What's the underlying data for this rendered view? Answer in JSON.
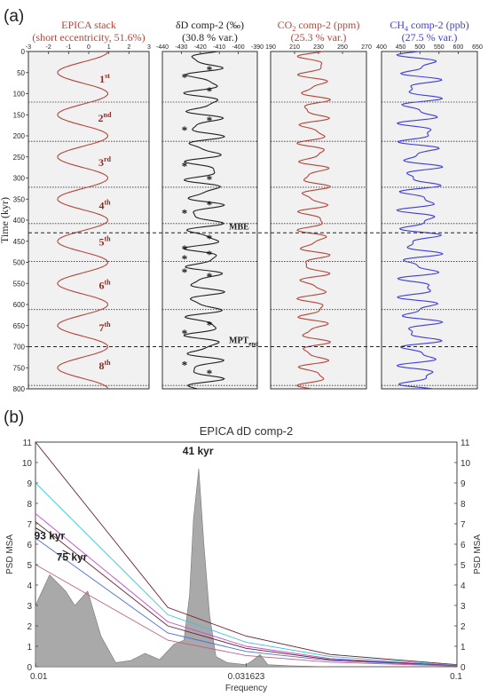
{
  "panel_labels": {
    "a": "(a)",
    "b": "(b)"
  },
  "colors": {
    "red": "#b5453a",
    "black": "#222222",
    "blue": "#3d3de0",
    "gray_fill": "#a9a9a9",
    "panel_bg": "#f1f1f1"
  },
  "chart_data": [
    {
      "type": "line",
      "ylabel": "Time (kyr)",
      "ylim": [
        0,
        800
      ],
      "yticks": [
        0,
        50,
        100,
        150,
        200,
        250,
        300,
        350,
        400,
        450,
        500,
        550,
        600,
        650,
        700,
        750,
        800
      ],
      "boundaries": [
        120,
        213,
        322,
        408,
        498,
        612,
        792
      ],
      "dashed_lines": [
        {
          "y": 430,
          "label": "MBE"
        },
        {
          "y": 700,
          "label": "MPT",
          "label_sub": "end"
        }
      ],
      "cycle_labels": [
        {
          "n": "1",
          "sup": "st",
          "y": 65
        },
        {
          "n": "2",
          "sup": "nd",
          "y": 158
        },
        {
          "n": "3",
          "sup": "rd",
          "y": 263
        },
        {
          "n": "4",
          "sup": "th",
          "y": 365
        },
        {
          "n": "5",
          "sup": "th",
          "y": 452
        },
        {
          "n": "6",
          "sup": "th",
          "y": 555
        },
        {
          "n": "7",
          "sup": "th",
          "y": 655
        },
        {
          "n": "8",
          "sup": "th",
          "y": 745
        }
      ],
      "star_markers": [
        {
          "side": "L",
          "y": 58
        },
        {
          "side": "R",
          "y": 40
        },
        {
          "side": "R",
          "y": 90
        },
        {
          "side": "L",
          "y": 183
        },
        {
          "side": "R",
          "y": 160
        },
        {
          "side": "L",
          "y": 268
        },
        {
          "side": "R",
          "y": 300
        },
        {
          "side": "L",
          "y": 380
        },
        {
          "side": "R",
          "y": 360
        },
        {
          "side": "L",
          "y": 465
        },
        {
          "side": "R",
          "y": 440
        },
        {
          "side": "L",
          "y": 488
        },
        {
          "side": "R",
          "y": 478
        },
        {
          "side": "L",
          "y": 520
        },
        {
          "side": "R",
          "y": 530
        },
        {
          "side": "L",
          "y": 665
        },
        {
          "side": "R",
          "y": 645
        },
        {
          "side": "L",
          "y": 740
        },
        {
          "side": "R",
          "y": 760
        }
      ],
      "panels": [
        {
          "title": "EPICA stack",
          "subtitle": "(short eccentricity, 51.6%)",
          "color": "#b5453a",
          "xlim": [
            -3,
            3
          ],
          "xticks": [
            "-3",
            "-2",
            "-1",
            "0",
            "1",
            "2",
            "3"
          ],
          "series": {
            "amp": 1.25,
            "base": -0.3,
            "components": [
              {
                "a": 1.0,
                "period": 100,
                "phase": 0
              }
            ]
          }
        },
        {
          "title": "δD comp-2 (‰)",
          "subtitle": "(30.8 % var.)",
          "color": "#222222",
          "xlim": [
            -440,
            -390
          ],
          "xticks": [
            "-440",
            "-430",
            "-420",
            "-410",
            "-400",
            "-390"
          ],
          "series": {
            "amp": 8,
            "base": -418,
            "components": [
              {
                "a": 1.0,
                "period": 41,
                "phase": 0.6
              },
              {
                "a": 0.35,
                "period": 23,
                "phase": 1.3
              }
            ]
          }
        },
        {
          "title": "CO2 comp-2 (ppm)",
          "title_parts": {
            "pre": "CO",
            "sub": "2",
            "post": " comp-2 (ppm)"
          },
          "subtitle": "(25.3 % var.)",
          "color": "#b5453a",
          "xlim": [
            190,
            270
          ],
          "xticks": [
            "190",
            "210",
            "230",
            "250",
            "270"
          ],
          "series": {
            "amp": 10,
            "base": 226,
            "components": [
              {
                "a": 1.0,
                "period": 41,
                "phase": 1.2
              },
              {
                "a": 0.4,
                "period": 23,
                "phase": 0.3
              }
            ]
          }
        },
        {
          "title": "CH4 comp-2 (ppb)",
          "title_parts": {
            "pre": "CH",
            "sub": "4",
            "post": " comp-2 (ppb)"
          },
          "subtitle": "(27.5 % var.)",
          "color": "#3d3de0",
          "xlim": [
            400,
            650
          ],
          "xticks": [
            "400",
            "450",
            "500",
            "550",
            "600",
            "650"
          ],
          "series": {
            "amp": 40,
            "base": 500,
            "components": [
              {
                "a": 1.0,
                "period": 41,
                "phase": 2.0
              },
              {
                "a": 0.5,
                "period": 23,
                "phase": 0.8
              }
            ]
          }
        }
      ]
    },
    {
      "type": "area",
      "title": "EPICA dD comp-2",
      "xlabel": "Frequency",
      "ylabel": "PSD MSA",
      "xscale": "log",
      "xlim": [
        0.01,
        0.1
      ],
      "xticks": [
        "0.01",
        "0.031623",
        "0.1"
      ],
      "ylim": [
        0,
        11
      ],
      "yticks": [
        "0",
        "1",
        "2",
        "3",
        "4",
        "5",
        "6",
        "7",
        "8",
        "9",
        "10",
        "11"
      ],
      "psd": [
        [
          0.01,
          3.0
        ],
        [
          0.0108,
          4.5
        ],
        [
          0.0118,
          3.7
        ],
        [
          0.0124,
          3.0
        ],
        [
          0.0133,
          3.7
        ],
        [
          0.0143,
          1.5
        ],
        [
          0.0155,
          0.2
        ],
        [
          0.0168,
          0.3
        ],
        [
          0.0182,
          0.65
        ],
        [
          0.0197,
          0.35
        ],
        [
          0.0213,
          1.1
        ],
        [
          0.0225,
          1.3
        ],
        [
          0.0232,
          3.5
        ],
        [
          0.0237,
          7.2
        ],
        [
          0.0244,
          9.7
        ],
        [
          0.0251,
          6.0
        ],
        [
          0.0259,
          2.5
        ],
        [
          0.0268,
          0.5
        ],
        [
          0.0285,
          0.2
        ],
        [
          0.03,
          0.15
        ],
        [
          0.0316,
          0.1
        ],
        [
          0.0327,
          0.3
        ],
        [
          0.0341,
          0.6
        ],
        [
          0.0356,
          0.1
        ],
        [
          0.04,
          0.05
        ],
        [
          0.05,
          0.0
        ],
        [
          0.1,
          0.0
        ]
      ],
      "lines": [
        {
          "color": "#6a1e2e",
          "points": [
            [
              0.01,
              11.0
            ],
            [
              0.0206,
              2.9
            ],
            [
              0.0316,
              1.5
            ],
            [
              0.05,
              0.6
            ],
            [
              0.1,
              0.1
            ]
          ]
        },
        {
          "color": "#3fc6d2",
          "points": [
            [
              0.01,
              9.0
            ],
            [
              0.0206,
              2.55
            ],
            [
              0.0316,
              1.2
            ],
            [
              0.05,
              0.5
            ],
            [
              0.1,
              0.08
            ]
          ]
        },
        {
          "color": "#c04fd0",
          "points": [
            [
              0.01,
              7.5
            ],
            [
              0.0206,
              2.2
            ],
            [
              0.0316,
              1.0
            ],
            [
              0.05,
              0.4
            ],
            [
              0.1,
              0.06
            ]
          ]
        },
        {
          "color": "#6a1e2e",
          "points": [
            [
              0.01,
              7.1
            ],
            [
              0.0206,
              2.0
            ],
            [
              0.0316,
              0.9
            ],
            [
              0.05,
              0.35
            ],
            [
              0.1,
              0.05
            ]
          ]
        },
        {
          "color": "#4a6fd6",
          "points": [
            [
              0.01,
              6.3
            ],
            [
              0.0206,
              1.65
            ],
            [
              0.0316,
              0.75
            ],
            [
              0.05,
              0.3
            ],
            [
              0.1,
              0.04
            ]
          ]
        },
        {
          "color": "#c0608a",
          "points": [
            [
              0.01,
              5.0
            ],
            [
              0.0206,
              1.3
            ],
            [
              0.0316,
              0.55
            ],
            [
              0.05,
              0.22
            ],
            [
              0.1,
              0.03
            ]
          ]
        }
      ],
      "annotations": [
        {
          "text": "41 kyr",
          "x": 0.0243,
          "y": 10.4
        },
        {
          "text": "93 kyr",
          "x": 0.0108,
          "y": 6.25
        },
        {
          "text": "75 kyr",
          "x": 0.0122,
          "y": 5.2
        }
      ],
      "annotation_lines": [
        {
          "x1": 0.01,
          "y1": 6.8,
          "x2": 0.0104,
          "y2": 6.6
        },
        {
          "x1": 0.0116,
          "y1": 5.7,
          "x2": 0.0121,
          "y2": 5.5
        }
      ]
    }
  ]
}
